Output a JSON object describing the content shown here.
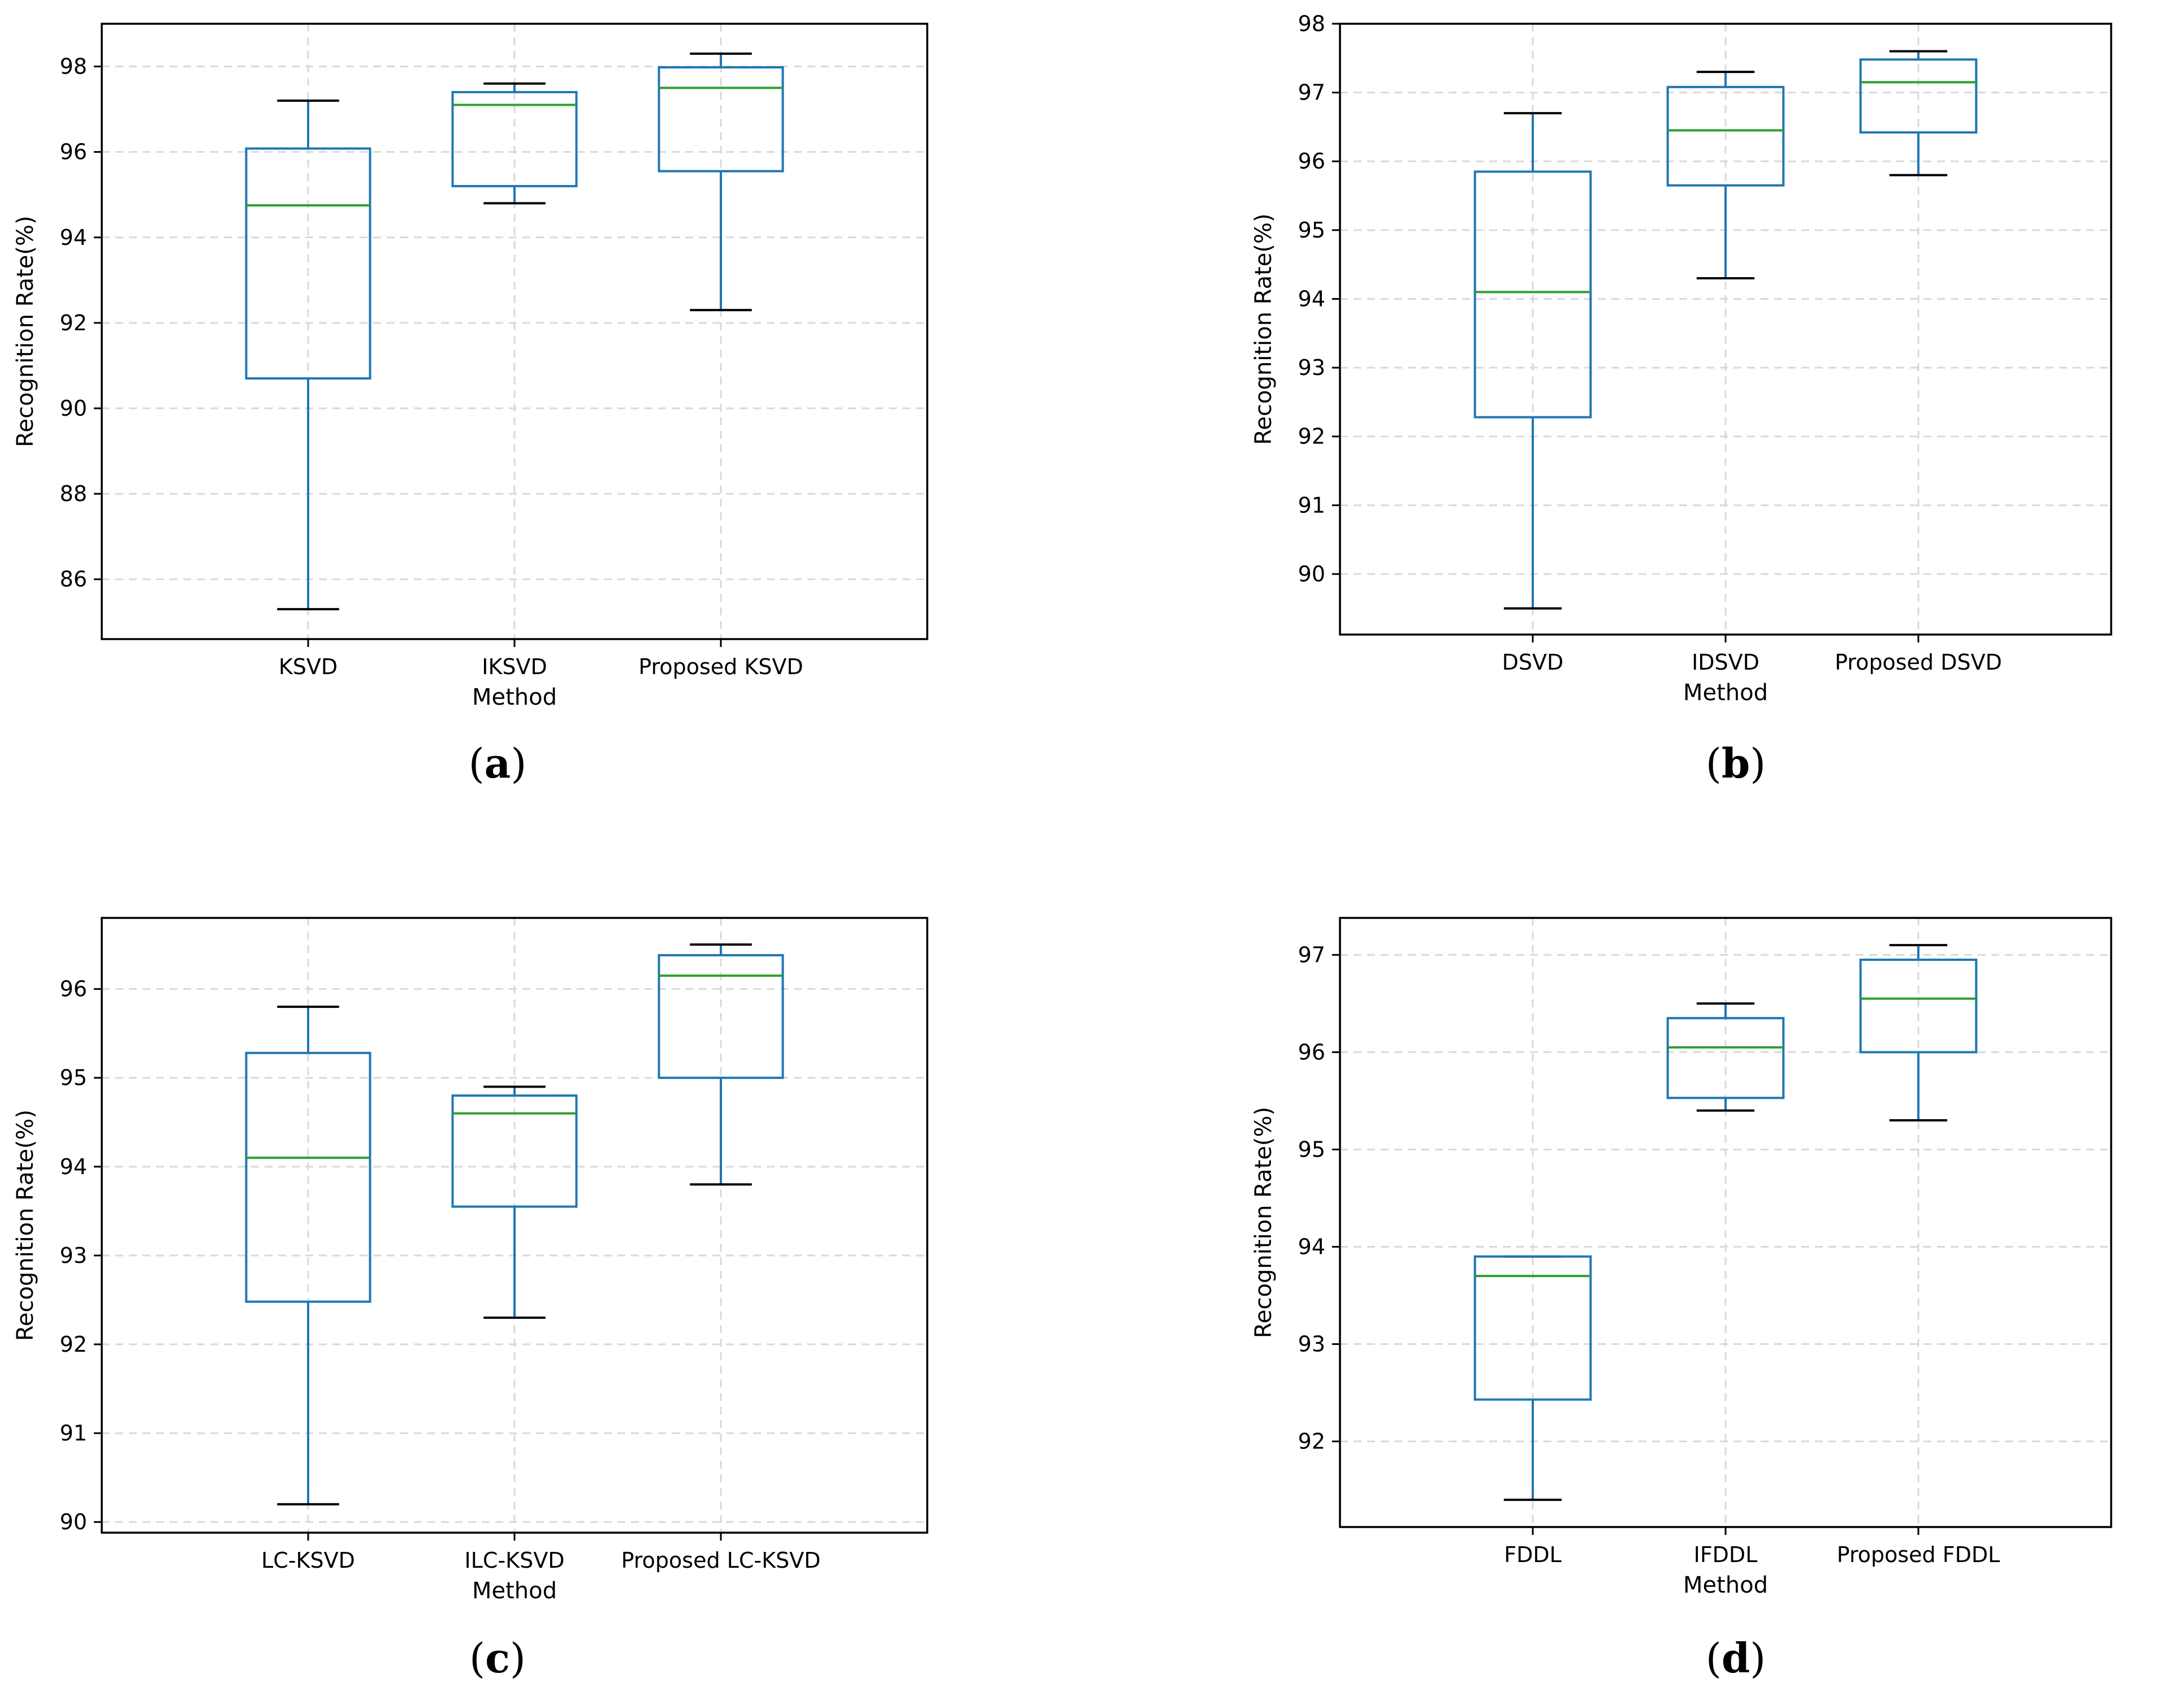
{
  "chart_data": [
    {
      "panel": "(a)",
      "type": "box",
      "categories": [
        "KSVD",
        "IKSVD",
        "Proposed KSVD"
      ],
      "xlabel": "Method",
      "ylabel": "Recognition Rate(%)",
      "ylim": [
        84.6,
        99.0
      ],
      "yticks": [
        86,
        88,
        90,
        92,
        94,
        96,
        98
      ],
      "grid": true,
      "boxes": [
        {
          "whisker_low": 85.3,
          "q1": 90.7,
          "median": 94.75,
          "q3": 96.08,
          "whisker_high": 97.2
        },
        {
          "whisker_low": 94.8,
          "q1": 95.2,
          "median": 97.1,
          "q3": 97.4,
          "whisker_high": 97.6
        },
        {
          "whisker_low": 92.3,
          "q1": 95.55,
          "median": 97.5,
          "q3": 97.98,
          "whisker_high": 98.3
        }
      ],
      "colors": {
        "box": "#1f77b4",
        "median": "#2ca02c",
        "cap": "#000000",
        "grid": "#d9d9d9"
      }
    },
    {
      "panel": "(b)",
      "type": "box",
      "categories": [
        "DSVD",
        "IDSVD",
        "Proposed DSVD"
      ],
      "xlabel": "Method",
      "ylabel": "Recognition Rate(%)",
      "ylim": [
        89.12,
        98.0
      ],
      "yticks": [
        90,
        91,
        92,
        93,
        94,
        95,
        96,
        97,
        98
      ],
      "grid": true,
      "boxes": [
        {
          "whisker_low": 89.5,
          "q1": 92.28,
          "median": 94.1,
          "q3": 95.85,
          "whisker_high": 96.7
        },
        {
          "whisker_low": 94.3,
          "q1": 95.65,
          "median": 96.45,
          "q3": 97.08,
          "whisker_high": 97.3
        },
        {
          "whisker_low": 95.8,
          "q1": 96.42,
          "median": 97.15,
          "q3": 97.48,
          "whisker_high": 97.6
        }
      ],
      "colors": {
        "box": "#1f77b4",
        "median": "#2ca02c",
        "cap": "#000000",
        "grid": "#d9d9d9"
      }
    },
    {
      "panel": "(c)",
      "type": "box",
      "categories": [
        "LC-KSVD",
        "ILC-KSVD",
        "Proposed LC-KSVD"
      ],
      "xlabel": "Method",
      "ylabel": "Recognition Rate(%)",
      "ylim": [
        89.88,
        96.8
      ],
      "yticks": [
        90,
        91,
        92,
        93,
        94,
        95,
        96
      ],
      "grid": true,
      "boxes": [
        {
          "whisker_low": 90.2,
          "q1": 92.48,
          "median": 94.1,
          "q3": 95.28,
          "whisker_high": 95.8
        },
        {
          "whisker_low": 92.3,
          "q1": 93.55,
          "median": 94.6,
          "q3": 94.8,
          "whisker_high": 94.9
        },
        {
          "whisker_low": 93.8,
          "q1": 95.0,
          "median": 96.15,
          "q3": 96.38,
          "whisker_high": 96.5
        }
      ],
      "colors": {
        "box": "#1f77b4",
        "median": "#2ca02c",
        "cap": "#000000",
        "grid": "#d9d9d9"
      }
    },
    {
      "panel": "(d)",
      "type": "box",
      "categories": [
        "FDDL",
        "IFDDL",
        "Proposed FDDL"
      ],
      "xlabel": "Method",
      "ylabel": "Recognition Rate(%)",
      "ylim": [
        91.12,
        97.38
      ],
      "yticks": [
        92,
        93,
        94,
        95,
        96,
        97
      ],
      "grid": true,
      "boxes": [
        {
          "whisker_low": 91.4,
          "q1": 92.43,
          "median": 93.7,
          "q3": 93.9,
          "whisker_high": 93.9
        },
        {
          "whisker_low": 95.4,
          "q1": 95.53,
          "median": 96.05,
          "q3": 96.35,
          "whisker_high": 96.5
        },
        {
          "whisker_low": 95.3,
          "q1": 96.0,
          "median": 96.55,
          "q3": 96.95,
          "whisker_high": 97.1
        }
      ],
      "colors": {
        "box": "#1f77b4",
        "median": "#2ca02c",
        "cap": "#000000",
        "grid": "#d9d9d9"
      }
    }
  ]
}
